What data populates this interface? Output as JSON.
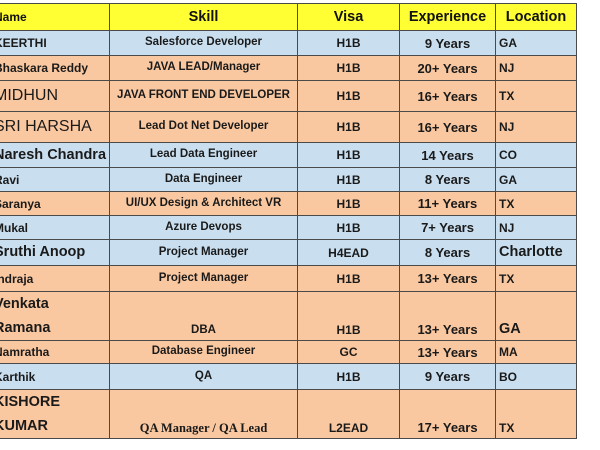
{
  "headers": {
    "name": "Name",
    "skill": "Skill",
    "visa": "Visa",
    "experience": "Experience",
    "location": "Location"
  },
  "rows": [
    {
      "name": "KEERTHI",
      "skill": "Salesforce Developer",
      "visa": "H1B",
      "experience": "9 Years",
      "location": "GA"
    },
    {
      "name": "Bhaskara Reddy",
      "skill": "JAVA LEAD/Manager",
      "visa": "H1B",
      "experience": "20+ Years",
      "location": "NJ"
    },
    {
      "name": "MIDHUN",
      "skill": "JAVA FRONT END DEVELOPER",
      "visa": "H1B",
      "experience": "16+ Years",
      "location": "TX"
    },
    {
      "name": "SRI HARSHA",
      "skill": "Lead Dot Net Developer",
      "visa": "H1B",
      "experience": "16+ Years",
      "location": "NJ"
    },
    {
      "name": "Naresh Chandra",
      "skill": "Lead Data Engineer",
      "visa": "H1B",
      "experience": "14 Years",
      "location": "CO"
    },
    {
      "name": "Ravi",
      "skill": "Data Engineer",
      "visa": "H1B",
      "experience": "8 Years",
      "location": "GA"
    },
    {
      "name": "Saranya",
      "skill": "UI/UX Design & Architect VR",
      "visa": "H1B",
      "experience": "11+ Years",
      "location": "TX"
    },
    {
      "name": "Mukal",
      "skill": "Azure Devops",
      "visa": "H1B",
      "experience": "7+ Years",
      "location": "NJ"
    },
    {
      "name": "Sruthi Anoop",
      "skill": "Project Manager",
      "visa": "H4EAD",
      "experience": "8 Years",
      "location": "Charlotte"
    },
    {
      "name": "Indraja",
      "skill": "Project Manager",
      "visa": "H1B",
      "experience": "13+ Years",
      "location": "TX"
    },
    {
      "name": "Venkata Ramana",
      "skill": "DBA",
      "visa": "H1B",
      "experience": "13+ Years",
      "location": "GA"
    },
    {
      "name": "Namratha",
      "skill": "Database Engineer",
      "visa": "GC",
      "experience": "13+ Years",
      "location": "MA"
    },
    {
      "name": "Karthik",
      "skill": "QA",
      "visa": "H1B",
      "experience": "9 Years",
      "location": "BO"
    },
    {
      "name": "KISHORE KUMAR",
      "skill": "QA Manager / QA Lead",
      "visa": "L2EAD",
      "experience": "17+ Years",
      "location": "TX"
    }
  ]
}
